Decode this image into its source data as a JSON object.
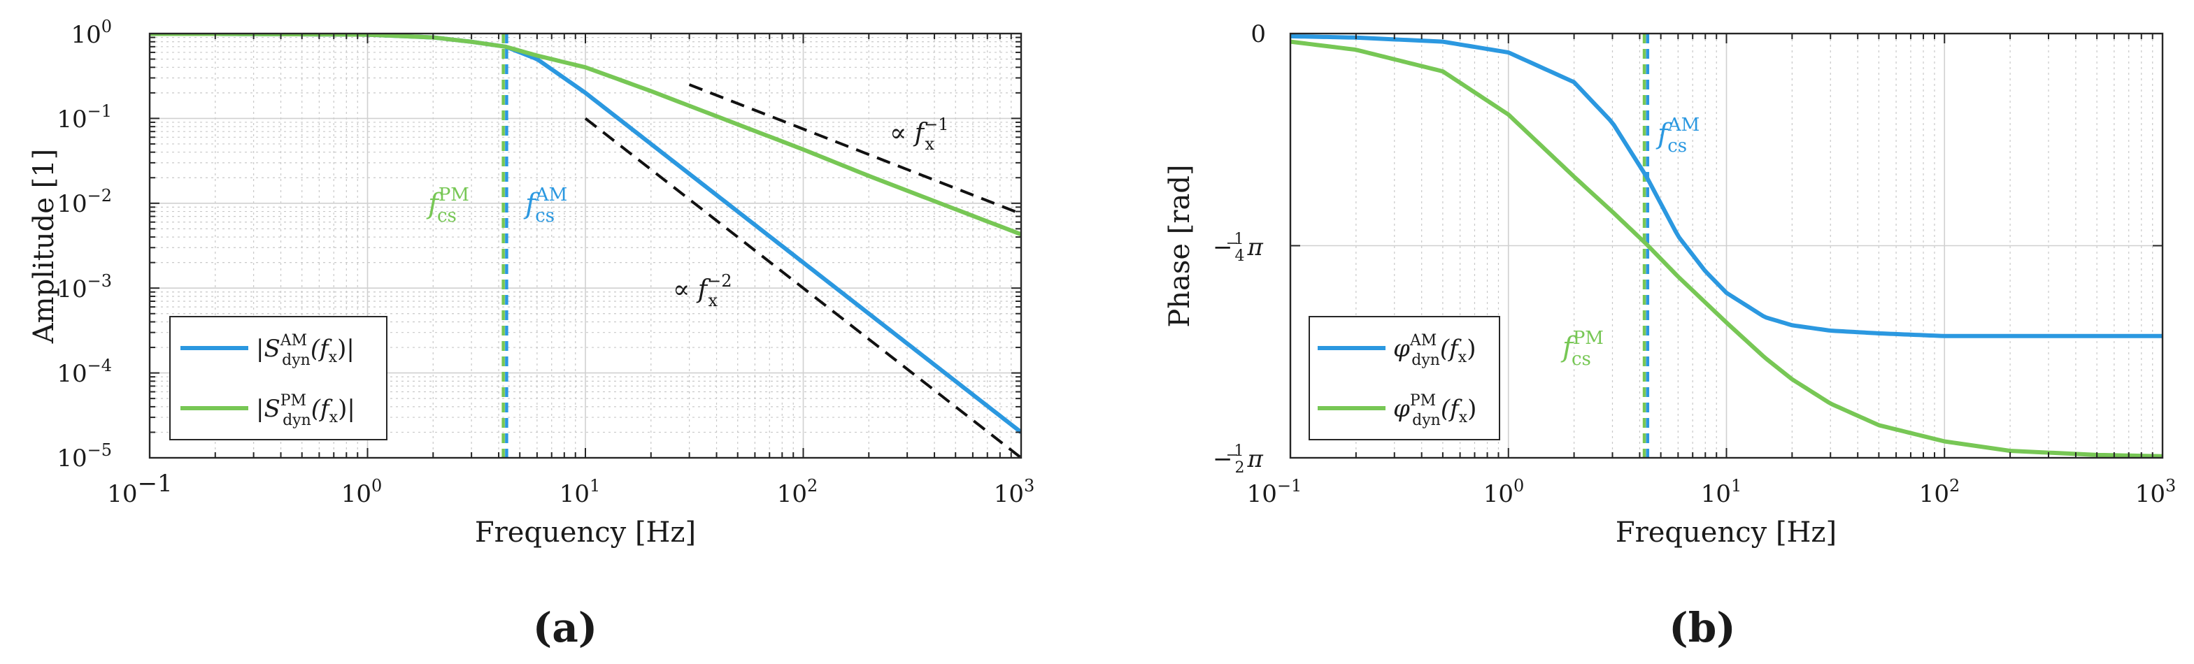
{
  "chart_data": [
    {
      "panel_label": "(a)",
      "type": "line",
      "xscale": "log",
      "yscale": "log",
      "xlabel": "Frequency [Hz]",
      "ylabel": "Amplitude [1]",
      "xlim": [
        0.1,
        1000
      ],
      "ylim": [
        1e-05,
        1
      ],
      "grid": true,
      "x_tick_labels": [
        "10",
        "−1",
        "10",
        "0",
        "10",
        "1",
        "10",
        "2",
        "10",
        "3"
      ],
      "y_tick_labels": [
        "10",
        "−5",
        "10",
        "−4",
        "10",
        "−3",
        "10",
        "−2",
        "10",
        "−1",
        "10",
        "0"
      ],
      "x_ticks": [
        0.1,
        1,
        10,
        100,
        1000
      ],
      "y_ticks": [
        1e-05,
        0.0001,
        0.001,
        0.01,
        0.1,
        1
      ],
      "series": [
        {
          "name": "|S_dyn^AM(f_x)|",
          "color": "#2b98e0",
          "x": [
            0.1,
            0.2,
            0.5,
            1,
            2,
            3,
            4.3,
            6,
            10,
            20,
            50,
            100,
            200,
            500,
            1000
          ],
          "y": [
            0.99,
            0.99,
            0.98,
            0.97,
            0.9,
            0.8,
            0.7,
            0.5,
            0.2,
            0.05,
            0.008,
            0.002,
            0.0005,
            8e-05,
            2e-05
          ]
        },
        {
          "name": "|S_dyn^PM(f_x)|",
          "color": "#77c755",
          "x": [
            0.1,
            0.2,
            0.5,
            1,
            2,
            3,
            4.3,
            6,
            10,
            20,
            50,
            100,
            200,
            500,
            1000
          ],
          "y": [
            0.99,
            0.99,
            0.98,
            0.97,
            0.9,
            0.8,
            0.7,
            0.55,
            0.4,
            0.21,
            0.085,
            0.043,
            0.021,
            0.0085,
            0.0043
          ]
        }
      ],
      "cutoff_lines": [
        {
          "x": 4.2,
          "color": "#77c755"
        },
        {
          "x": 4.35,
          "color": "#2b98e0"
        }
      ],
      "reference_lines": [
        {
          "x": [
            30,
            1000
          ],
          "y": [
            0.25,
            0.0075
          ]
        },
        {
          "x": [
            10,
            1000
          ],
          "y": [
            0.1,
            1e-05
          ]
        }
      ],
      "legend": {
        "placement": "bottom-left",
        "entries": [
          {
            "pre": "|S",
            "sup": "AM",
            "sub": "dyn",
            "post": "(f",
            "post_sub": "x",
            "end": ")|",
            "color": "#2b98e0"
          },
          {
            "pre": "|S",
            "sup": "PM",
            "sub": "dyn",
            "post": "(f",
            "post_sub": "x",
            "end": ")|",
            "color": "#77c755"
          }
        ]
      },
      "annotations": {
        "fcs_pm": {
          "base": "f",
          "sub": "cs",
          "sup": "PM",
          "color": "#77c755"
        },
        "fcs_am": {
          "base": "f",
          "sub": "cs",
          "sup": "AM",
          "color": "#2b98e0"
        },
        "prop1": {
          "pre": "∝ f",
          "sub": "x",
          "sup": "−1"
        },
        "prop2": {
          "pre": "∝ f",
          "sub": "x",
          "sup": "−2"
        }
      }
    },
    {
      "panel_label": "(b)",
      "type": "line",
      "xscale": "log",
      "yscale": "linear",
      "xlabel": "Frequency [Hz]",
      "ylabel": "Phase [rad]",
      "xlim": [
        0.1,
        1000
      ],
      "ylim": [
        -1.5708,
        0
      ],
      "grid": true,
      "x_tick_labels": [
        "10",
        "−1",
        "10",
        "0",
        "10",
        "1",
        "10",
        "2",
        "10",
        "3"
      ],
      "x_ticks": [
        0.1,
        1,
        10,
        100,
        1000
      ],
      "y_ticks": [
        -1.5708,
        -0.7854,
        0
      ],
      "y_tick_labels": [
        "−",
        "1",
        "2",
        "π",
        "−",
        "1",
        "4",
        "π",
        "0"
      ],
      "series": [
        {
          "name": "φ_dyn^AM(f_x)",
          "color": "#2b98e0",
          "x": [
            0.1,
            0.2,
            0.5,
            1,
            2,
            3,
            4.3,
            6,
            8,
            10,
            15,
            20,
            30,
            50,
            100,
            200,
            500,
            1000
          ],
          "y": [
            -0.01,
            -0.015,
            -0.03,
            -0.07,
            -0.18,
            -0.33,
            -0.53,
            -0.75,
            -0.88,
            -0.96,
            -1.05,
            -1.08,
            -1.1,
            -1.11,
            -1.12,
            -1.12,
            -1.12,
            -1.12
          ]
        },
        {
          "name": "φ_dyn^PM(f_x)",
          "color": "#77c755",
          "x": [
            0.1,
            0.2,
            0.5,
            1,
            2,
            3,
            4.3,
            6,
            10,
            15,
            20,
            30,
            50,
            100,
            200,
            500,
            1000
          ],
          "y": [
            -0.03,
            -0.06,
            -0.14,
            -0.3,
            -0.53,
            -0.66,
            -0.78,
            -0.9,
            -1.07,
            -1.2,
            -1.28,
            -1.37,
            -1.45,
            -1.51,
            -1.545,
            -1.56,
            -1.565
          ]
        }
      ],
      "cutoff_lines": [
        {
          "x": 4.2,
          "color": "#77c755"
        },
        {
          "x": 4.35,
          "color": "#2b98e0"
        }
      ],
      "legend": {
        "placement": "bottom-left",
        "entries": [
          {
            "pre": "φ",
            "sup": "AM",
            "sub": "dyn",
            "post": "(f",
            "post_sub": "x",
            "end": ")",
            "color": "#2b98e0"
          },
          {
            "pre": "φ",
            "sup": "PM",
            "sub": "dyn",
            "post": "(f",
            "post_sub": "x",
            "end": ")",
            "color": "#77c755"
          }
        ]
      },
      "annotations": {
        "fcs_am": {
          "base": "f",
          "sub": "cs",
          "sup": "AM",
          "color": "#2b98e0"
        },
        "fcs_pm": {
          "base": "f",
          "sub": "cs",
          "sup": "PM",
          "color": "#77c755"
        }
      }
    }
  ]
}
